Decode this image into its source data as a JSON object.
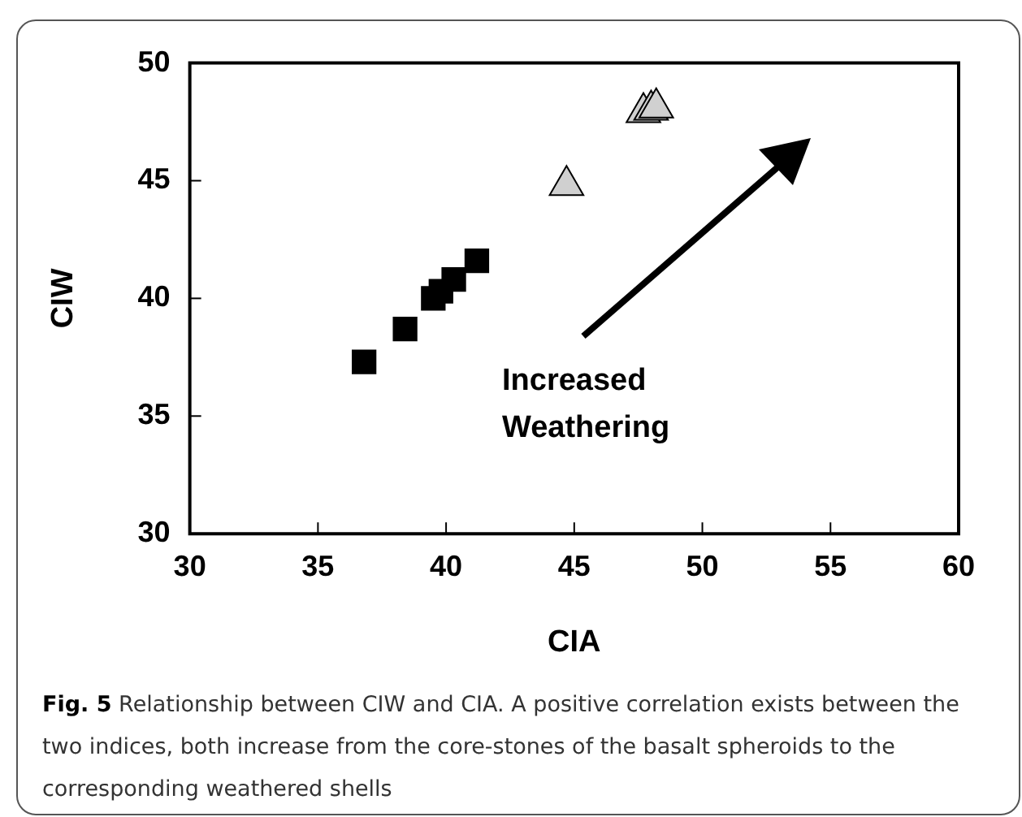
{
  "chart_data": {
    "type": "scatter",
    "xlabel": "CIA",
    "ylabel": "CIW",
    "xlim": [
      30,
      60
    ],
    "xticks": [
      30,
      35,
      40,
      45,
      50,
      55,
      60
    ],
    "ylim": [
      30,
      50
    ],
    "yticks": [
      30,
      35,
      40,
      45,
      50
    ],
    "grid": false,
    "legend": false,
    "series": [
      {
        "color": "#000000",
        "marker": "square",
        "x": [
          36.8,
          38.4,
          39.5,
          39.8,
          40.3,
          41.2
        ],
        "values": [
          37.3,
          38.7,
          40.0,
          40.3,
          40.8,
          41.6
        ]
      },
      {
        "color": "#d0d0d0",
        "marker": "triangle",
        "x": [
          44.7,
          47.7,
          48.0,
          48.2
        ],
        "values": [
          44.8,
          47.9,
          48.0,
          48.1
        ]
      }
    ],
    "annotations": [
      "Increased Weathering",
      "Fig. 5",
      "Relationship between CIW and CIA. A positive correlation exists between the two indices, both increase from the core-stones of the basalt spheroids to the corresponding weathered shells"
    ]
  }
}
